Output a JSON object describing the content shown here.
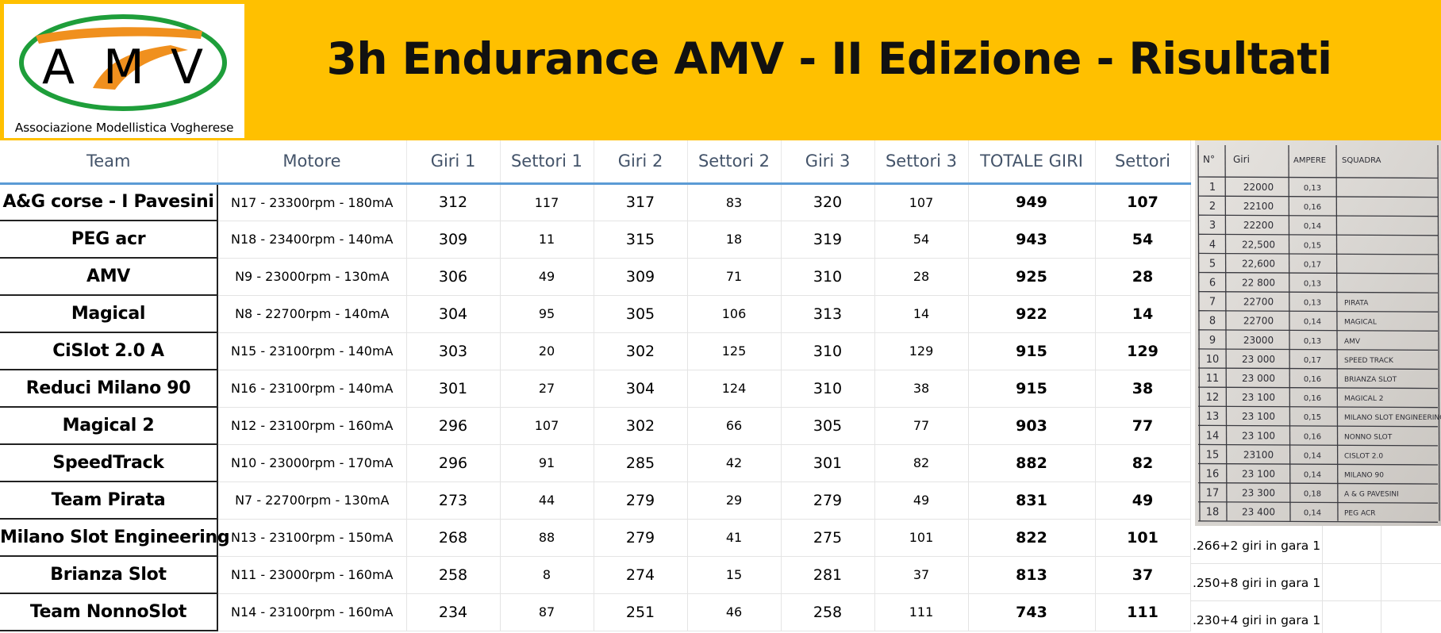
{
  "header": {
    "title": "3h Endurance AMV - II Edizione - Risultati",
    "logo": {
      "letters": [
        "A",
        "M",
        "V"
      ],
      "caption": "Associazione Modellistica Vogherese",
      "colors": {
        "ellipse": "#1e9e3a",
        "swoosh": "#f0901e",
        "letters": "#000000"
      }
    }
  },
  "table": {
    "columns": [
      "Team",
      "Motore",
      "Giri 1",
      "Settori 1",
      "Giri 2",
      "Settori 2",
      "Giri 3",
      "Settori 3",
      "TOTALE GIRI",
      "Settori"
    ],
    "rows": [
      {
        "team": "A&G corse - I Pavesini",
        "motore": "N17 - 23300rpm - 180mA",
        "giri1": "312",
        "settori1": "117",
        "giri2": "317",
        "settori2": "83",
        "giri3": "320",
        "settori3": "107",
        "totale": "949",
        "settori": "107"
      },
      {
        "team": "PEG acr",
        "motore": "N18 - 23400rpm - 140mA",
        "giri1": "309",
        "settori1": "11",
        "giri2": "315",
        "settori2": "18",
        "giri3": "319",
        "settori3": "54",
        "totale": "943",
        "settori": "54"
      },
      {
        "team": "AMV",
        "motore": "N9 - 23000rpm - 130mA",
        "giri1": "306",
        "settori1": "49",
        "giri2": "309",
        "settori2": "71",
        "giri3": "310",
        "settori3": "28",
        "totale": "925",
        "settori": "28"
      },
      {
        "team": "Magical",
        "motore": "N8 - 22700rpm - 140mA",
        "giri1": "304",
        "settori1": "95",
        "giri2": "305",
        "settori2": "106",
        "giri3": "313",
        "settori3": "14",
        "totale": "922",
        "settori": "14"
      },
      {
        "team": "CiSlot 2.0 A",
        "motore": "N15 - 23100rpm - 140mA",
        "giri1": "303",
        "settori1": "20",
        "giri2": "302",
        "settori2": "125",
        "giri3": "310",
        "settori3": "129",
        "totale": "915",
        "settori": "129"
      },
      {
        "team": "Reduci Milano 90",
        "motore": "N16 - 23100rpm - 140mA",
        "giri1": "301",
        "settori1": "27",
        "giri2": "304",
        "settori2": "124",
        "giri3": "310",
        "settori3": "38",
        "totale": "915",
        "settori": "38"
      },
      {
        "team": "Magical 2",
        "motore": "N12 - 23100rpm - 160mA",
        "giri1": "296",
        "settori1": "107",
        "giri2": "302",
        "settori2": "66",
        "giri3": "305",
        "settori3": "77",
        "totale": "903",
        "settori": "77"
      },
      {
        "team": "SpeedTrack",
        "motore": "N10 - 23000rpm - 170mA",
        "giri1": "296",
        "settori1": "91",
        "giri2": "285",
        "settori2": "42",
        "giri3": "301",
        "settori3": "82",
        "totale": "882",
        "settori": "82"
      },
      {
        "team": "Team Pirata",
        "motore": "N7 - 22700rpm - 130mA",
        "giri1": "273",
        "settori1": "44",
        "giri2": "279",
        "settori2": "29",
        "giri3": "279",
        "settori3": "49",
        "totale": "831",
        "settori": "49"
      },
      {
        "team": "Milano Slot Engineering",
        "motore": "N13 - 23100rpm - 150mA",
        "giri1": "268",
        "settori1": "88",
        "giri2": "279",
        "settori2": "41",
        "giri3": "275",
        "settori3": "101",
        "totale": "822",
        "settori": "101"
      },
      {
        "team": "Brianza Slot",
        "motore": "N11 - 23000rpm - 160mA",
        "giri1": "258",
        "settori1": "8",
        "giri2": "274",
        "settori2": "15",
        "giri3": "281",
        "settori3": "37",
        "totale": "813",
        "settori": "37"
      },
      {
        "team": "Team NonnoSlot",
        "motore": "N14 - 23100rpm - 160mA",
        "giri1": "234",
        "settori1": "87",
        "giri2": "251",
        "settori2": "46",
        "giri3": "258",
        "settori3": "111",
        "totale": "743",
        "settori": "111"
      }
    ]
  },
  "notes": [
    ".266+2 giri in gara 1",
    ".250+8 giri in gara 1",
    ".230+4 giri in gara 1"
  ],
  "handwritten_sheet": {
    "headers": [
      "N°",
      "Giri",
      "AMPERE",
      "SQUADRA"
    ],
    "rows": [
      {
        "n": "1",
        "giri": "22000",
        "ampere": "0,13",
        "squadra": ""
      },
      {
        "n": "2",
        "giri": "22100",
        "ampere": "0,16",
        "squadra": ""
      },
      {
        "n": "3",
        "giri": "22200",
        "ampere": "0,14",
        "squadra": ""
      },
      {
        "n": "4",
        "giri": "22,500",
        "ampere": "0,15",
        "squadra": ""
      },
      {
        "n": "5",
        "giri": "22,600",
        "ampere": "0,17",
        "squadra": ""
      },
      {
        "n": "6",
        "giri": "22 800",
        "ampere": "0,13",
        "squadra": ""
      },
      {
        "n": "7",
        "giri": "22700",
        "ampere": "0,13",
        "squadra": "PIRATA"
      },
      {
        "n": "8",
        "giri": "22700",
        "ampere": "0,14",
        "squadra": "MAGICAL"
      },
      {
        "n": "9",
        "giri": "23000",
        "ampere": "0,13",
        "squadra": "AMV"
      },
      {
        "n": "10",
        "giri": "23 000",
        "ampere": "0,17",
        "squadra": "SPEED TRACK"
      },
      {
        "n": "11",
        "giri": "23 000",
        "ampere": "0,16",
        "squadra": "BRIANZA SLOT"
      },
      {
        "n": "12",
        "giri": "23 100",
        "ampere": "0,16",
        "squadra": "MAGICAL 2"
      },
      {
        "n": "13",
        "giri": "23 100",
        "ampere": "0,15",
        "squadra": "MILANO SLOT ENGINEERING"
      },
      {
        "n": "14",
        "giri": "23 100",
        "ampere": "0,16",
        "squadra": "NONNO SLOT"
      },
      {
        "n": "15",
        "giri": "23100",
        "ampere": "0,14",
        "squadra": "CISLOT 2.0"
      },
      {
        "n": "16",
        "giri": "23 100",
        "ampere": "0,14",
        "squadra": "MILANO 90"
      },
      {
        "n": "17",
        "giri": "23 300",
        "ampere": "0,18",
        "squadra": "A & G PAVESINI"
      },
      {
        "n": "18",
        "giri": "23 400",
        "ampere": "0,14",
        "squadra": "PEG ACR"
      }
    ]
  },
  "colors": {
    "header_bg": "#ffc000",
    "column_header_text": "#44546a",
    "column_header_rule": "#5b9bd5"
  }
}
